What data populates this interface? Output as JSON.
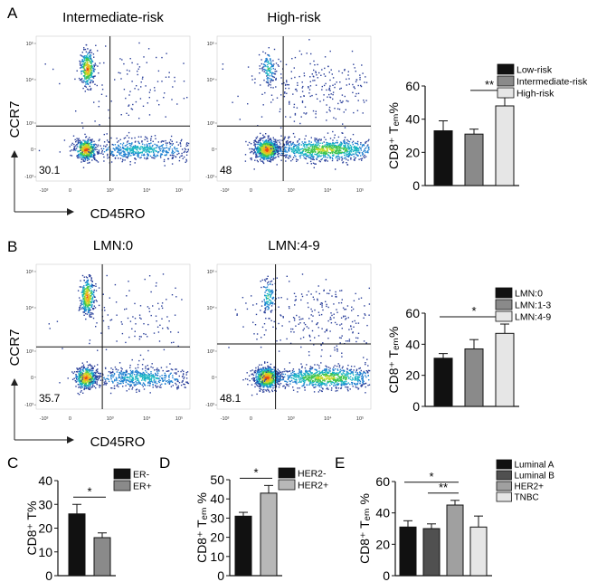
{
  "panels": {
    "A": {
      "letter": "A"
    },
    "B": {
      "letter": "B"
    },
    "C": {
      "letter": "C"
    },
    "D": {
      "letter": "D"
    },
    "E": {
      "letter": "E"
    }
  },
  "flow_plots": [
    {
      "id": "A1",
      "title": "Intermediate-risk",
      "quadrant_value": "30.1"
    },
    {
      "id": "A2",
      "title": "High-risk",
      "quadrant_value": "48"
    },
    {
      "id": "B1",
      "title": "LMN:0",
      "quadrant_value": "35.7"
    },
    {
      "id": "B2",
      "title": "LMN:4-9",
      "quadrant_value": "48.1"
    }
  ],
  "flow_axes": {
    "y_label": "CCR7",
    "x_label": "CD45RO",
    "y_ticks": [
      "10⁵",
      "10⁴",
      "10³",
      "0",
      "-10³"
    ],
    "x_ticks": [
      "-10³",
      "0",
      "10³",
      "10⁴",
      "10⁵"
    ]
  },
  "colors": {
    "black": "#111111",
    "dark_gray": "#505050",
    "mid_gray": "#8a8a8a",
    "light_gray": "#c8c8c8",
    "lighter_gray": "#e6e6e6",
    "dots": "#2a3f9a"
  },
  "chart_data": [
    {
      "id": "A",
      "type": "bar",
      "ylabel": "CD8⁺ Tₑₘ%",
      "ylim": [
        0,
        60
      ],
      "yticks": [
        0,
        20,
        40,
        60
      ],
      "categories": [
        "Low-risk",
        "Intermediate-risk",
        "High-risk"
      ],
      "values": [
        33,
        31,
        48
      ],
      "errors": [
        6,
        3,
        5
      ],
      "fills": [
        "#111111",
        "#8a8a8a",
        "#e6e6e6"
      ],
      "significance": [
        {
          "from": 1,
          "to": 2,
          "label": "**"
        }
      ]
    },
    {
      "id": "B",
      "type": "bar",
      "ylabel": "CD8⁺ Tₑₘ%",
      "ylim": [
        0,
        60
      ],
      "yticks": [
        0,
        20,
        40,
        60
      ],
      "categories": [
        "LMN:0",
        "LMN:1-3",
        "LMN:4-9"
      ],
      "values": [
        31,
        37,
        47
      ],
      "errors": [
        3,
        6,
        6
      ],
      "fills": [
        "#111111",
        "#8a8a8a",
        "#e6e6e6"
      ],
      "significance": [
        {
          "from": 0,
          "to": 2,
          "label": "*"
        }
      ]
    },
    {
      "id": "C",
      "type": "bar",
      "ylabel": "CD8⁺ T%",
      "ylim": [
        0,
        40
      ],
      "yticks": [
        0,
        10,
        20,
        30,
        40
      ],
      "categories": [
        "ER-",
        "ER+"
      ],
      "values": [
        26,
        16
      ],
      "errors": [
        4,
        2
      ],
      "fills": [
        "#111111",
        "#8a8a8a"
      ],
      "significance": [
        {
          "from": 0,
          "to": 1,
          "label": "*"
        }
      ]
    },
    {
      "id": "D",
      "type": "bar",
      "ylabel": "CD8⁺ Tₑₘ %",
      "ylim": [
        0,
        50
      ],
      "yticks": [
        0,
        10,
        20,
        30,
        40,
        50
      ],
      "categories": [
        "HER2-",
        "HER2+"
      ],
      "values": [
        31,
        43
      ],
      "errors": [
        2,
        4
      ],
      "fills": [
        "#111111",
        "#b8b8b8"
      ],
      "significance": [
        {
          "from": 0,
          "to": 1,
          "label": "*"
        }
      ]
    },
    {
      "id": "E",
      "type": "bar",
      "ylabel": "CD8⁺ Tₑₘ %",
      "ylim": [
        0,
        60
      ],
      "yticks": [
        0,
        20,
        40,
        60
      ],
      "categories": [
        "Luminal A",
        "Luminal B",
        "HER2+",
        "TNBC"
      ],
      "values": [
        31,
        30,
        45,
        31
      ],
      "errors": [
        4,
        3,
        3,
        7
      ],
      "fills": [
        "#111111",
        "#505050",
        "#a0a0a0",
        "#e6e6e6"
      ],
      "significance": [
        {
          "from": 0,
          "to": 2,
          "label": "*"
        },
        {
          "from": 1,
          "to": 2,
          "label": "**"
        }
      ]
    }
  ]
}
